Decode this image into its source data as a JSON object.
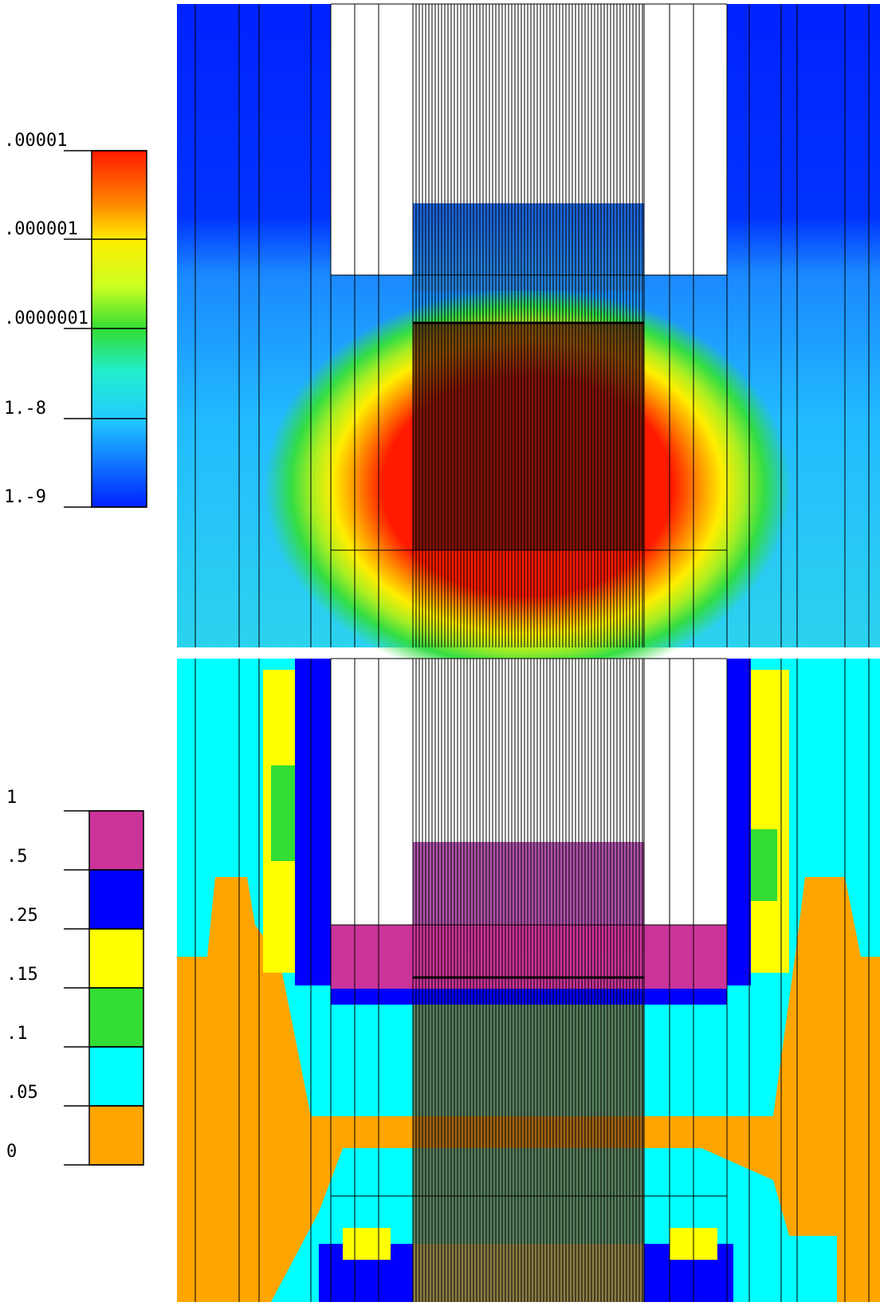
{
  "panels": [
    {
      "colorbar": {
        "labels": [
          ".00001",
          ".000001",
          ".0000001",
          "1.-8",
          "1.-9"
        ]
      }
    },
    {
      "colorbar": {
        "labels": [
          "1",
          ".5",
          ".25",
          ".15",
          ".1",
          ".05",
          "0"
        ]
      }
    }
  ]
}
